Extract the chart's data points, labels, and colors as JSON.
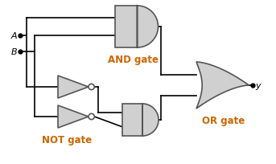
{
  "bg_color": "#ffffff",
  "line_color": "#000000",
  "gate_fill": "#d0d0d0",
  "gate_edge": "#555555",
  "label_A": "A",
  "label_B": "B",
  "label_Y": "y",
  "label_AND": "AND gate",
  "label_NOT": "NOT gate",
  "label_OR": "OR gate",
  "text_color_gates": "#cc6600",
  "figsize": [
    3.43,
    2.05
  ],
  "dpi": 100
}
